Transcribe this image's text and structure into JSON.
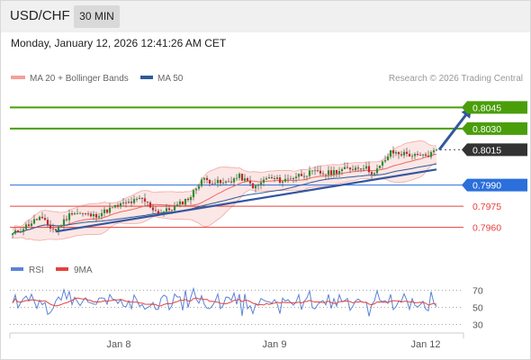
{
  "header": {
    "pair": "USD/CHF",
    "timeframe": "30 MIN",
    "datetime": "Monday, January 12, 2026 12:41:26 AM CET"
  },
  "legend": {
    "ma20_label": "MA 20 + Bollinger Bands",
    "ma50_label": "MA 50",
    "credit": "Research © 2026 Trading Central",
    "rsi_label": "RSI",
    "ma9_label": "9MA"
  },
  "colors": {
    "green": "#4a9e0a",
    "blue": "#2a6fdb",
    "red": "#e8413c",
    "dark_label": "#333333",
    "bollinger": "#f4b9b5",
    "ma50": "#2f5a9a",
    "trendline": "#3357a0",
    "candle_up": "#2f8f2f",
    "candle_down": "#c62828",
    "rsi": "#5b84d6",
    "rsi_ma": "#e8413c"
  },
  "chart_data": [
    {
      "type": "candlestick",
      "ylim": [
        0.7947,
        0.80535
      ],
      "x_ticks": [
        "Jan 8",
        "Jan 9",
        "Jan 12"
      ],
      "levels": [
        {
          "value": 0.8045,
          "label": "0.8045",
          "kind": "resistance"
        },
        {
          "value": 0.803,
          "label": "0.8030",
          "kind": "resistance"
        },
        {
          "value": 0.8015,
          "label": "0.8015",
          "kind": "current"
        },
        {
          "value": 0.799,
          "label": "0.7990",
          "kind": "pivot"
        },
        {
          "value": 0.7975,
          "label": "0.7975",
          "kind": "support"
        },
        {
          "value": 0.796,
          "label": "0.7960",
          "kind": "support"
        }
      ],
      "series": [
        {
          "name": "MA 20 + Bollinger Bands"
        },
        {
          "name": "MA 50"
        }
      ],
      "anchors": [
        {
          "i": 0,
          "p": 0.7955
        },
        {
          "i": 10,
          "p": 0.7967
        },
        {
          "i": 14,
          "p": 0.796
        },
        {
          "i": 16,
          "p": 0.7958
        },
        {
          "i": 22,
          "p": 0.7971
        },
        {
          "i": 30,
          "p": 0.7968
        },
        {
          "i": 40,
          "p": 0.7976
        },
        {
          "i": 48,
          "p": 0.798
        },
        {
          "i": 54,
          "p": 0.797
        },
        {
          "i": 60,
          "p": 0.7974
        },
        {
          "i": 66,
          "p": 0.7982
        },
        {
          "i": 70,
          "p": 0.7994
        },
        {
          "i": 78,
          "p": 0.7991
        },
        {
          "i": 84,
          "p": 0.7996
        },
        {
          "i": 90,
          "p": 0.7988
        },
        {
          "i": 94,
          "p": 0.7995
        },
        {
          "i": 100,
          "p": 0.7993
        },
        {
          "i": 106,
          "p": 0.7997
        },
        {
          "i": 112,
          "p": 0.7999
        },
        {
          "i": 116,
          "p": 0.7998
        },
        {
          "i": 120,
          "p": 0.8
        },
        {
          "i": 126,
          "p": 0.8002
        },
        {
          "i": 130,
          "p": 0.8003
        },
        {
          "i": 134,
          "p": 0.7998
        },
        {
          "i": 140,
          "p": 0.8013
        },
        {
          "i": 146,
          "p": 0.8012
        },
        {
          "i": 150,
          "p": 0.801
        },
        {
          "i": 154,
          "p": 0.8011
        },
        {
          "i": 157,
          "p": 0.8015
        }
      ],
      "trendline": {
        "from": {
          "i": 16,
          "p": 0.7957
        },
        "to": {
          "i": 157,
          "p": 0.8001
        }
      },
      "projection": {
        "from": {
          "i": 158,
          "p": 0.8015
        },
        "to": {
          "i": 170,
          "p": 0.8045
        }
      }
    },
    {
      "type": "line",
      "title": "RSI",
      "ylim": [
        20,
        80
      ],
      "y_ticks": [
        70,
        50,
        30
      ],
      "series": [
        {
          "name": "RSI"
        },
        {
          "name": "9MA"
        }
      ]
    }
  ]
}
